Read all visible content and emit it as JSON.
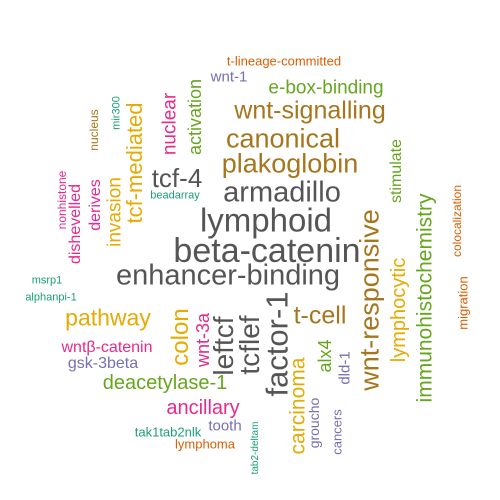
{
  "colors": {
    "orange": "#d95f02",
    "green": "#66a61e",
    "purple": "#7570b3",
    "brown": "#a6761d",
    "gray": "#666666",
    "pink": "#e7298a",
    "gold": "#e6ab02",
    "teal": "#1b9e77",
    "darkgray": "#555555"
  },
  "words": [
    {
      "text": "t-lineage-committed",
      "color": "orange",
      "size": 13
    },
    {
      "text": "wnt-1",
      "color": "purple",
      "size": 15
    },
    {
      "text": "e-box-binding",
      "color": "green",
      "size": 19
    },
    {
      "text": "wnt-signalling",
      "color": "brown",
      "size": 25
    },
    {
      "text": "canonical",
      "color": "brown",
      "size": 27
    },
    {
      "text": "plakoglobin",
      "color": "brown",
      "size": 27
    },
    {
      "text": "activation",
      "color": "green",
      "size": 18
    },
    {
      "text": "nuclear",
      "color": "pink",
      "size": 19
    },
    {
      "text": "mir300",
      "color": "teal",
      "size": 11
    },
    {
      "text": "nucleus",
      "color": "brown",
      "size": 12
    },
    {
      "text": "tcf-mediated",
      "color": "gold",
      "size": 22
    },
    {
      "text": "tcf-4",
      "color": "darkgray",
      "size": 26
    },
    {
      "text": "beadarray",
      "color": "teal",
      "size": 11
    },
    {
      "text": "armadillo",
      "color": "darkgray",
      "size": 29
    },
    {
      "text": "stimulate",
      "color": "green",
      "size": 16
    },
    {
      "text": "immunohistochemistry",
      "color": "green",
      "size": 21
    },
    {
      "text": "colocalization",
      "color": "orange",
      "size": 12
    },
    {
      "text": "invasion",
      "color": "gold",
      "size": 19
    },
    {
      "text": "derives",
      "color": "pink",
      "size": 16
    },
    {
      "text": "dishevelled",
      "color": "pink",
      "size": 16
    },
    {
      "text": "nonhistone",
      "color": "pink",
      "size": 12
    },
    {
      "text": "lymphoid",
      "color": "darkgray",
      "size": 33
    },
    {
      "text": "wnt-responsive",
      "color": "brown",
      "size": 27
    },
    {
      "text": "lymphocytic",
      "color": "gold",
      "size": 20
    },
    {
      "text": "migration",
      "color": "orange",
      "size": 13
    },
    {
      "text": "beta-catenin",
      "color": "darkgray",
      "size": 34
    },
    {
      "text": "enhancer-binding",
      "color": "darkgray",
      "size": 29
    },
    {
      "text": "msrp1",
      "color": "teal",
      "size": 11
    },
    {
      "text": "alphanpi-1",
      "color": "teal",
      "size": 11
    },
    {
      "text": "pathway",
      "color": "gold",
      "size": 23
    },
    {
      "text": "colon",
      "color": "gold",
      "size": 24
    },
    {
      "text": "wnt-3a",
      "color": "pink",
      "size": 18
    },
    {
      "text": "leftcf",
      "color": "darkgray",
      "size": 28
    },
    {
      "text": "tcflef",
      "color": "darkgray",
      "size": 28
    },
    {
      "text": "factor-1",
      "color": "darkgray",
      "size": 31
    },
    {
      "text": "t-cell",
      "color": "brown",
      "size": 25
    },
    {
      "text": "alx4",
      "color": "green",
      "size": 18
    },
    {
      "text": "dld-1",
      "color": "purple",
      "size": 15
    },
    {
      "text": "wntβ-catenin",
      "color": "pink",
      "size": 16
    },
    {
      "text": "gsk-3beta",
      "color": "purple",
      "size": 16
    },
    {
      "text": "deacetylase-1",
      "color": "green",
      "size": 20
    },
    {
      "text": "carcinoma",
      "color": "gold",
      "size": 21
    },
    {
      "text": "groucho",
      "color": "purple",
      "size": 14
    },
    {
      "text": "cancers",
      "color": "purple",
      "size": 13
    },
    {
      "text": "ancillary",
      "color": "pink",
      "size": 20
    },
    {
      "text": "tooth",
      "color": "purple",
      "size": 15
    },
    {
      "text": "tak1tab2nlk",
      "color": "teal",
      "size": 13
    },
    {
      "text": "lymphoma",
      "color": "orange",
      "size": 13
    },
    {
      "text": "tab2-deltam",
      "color": "teal",
      "size": 10
    }
  ]
}
